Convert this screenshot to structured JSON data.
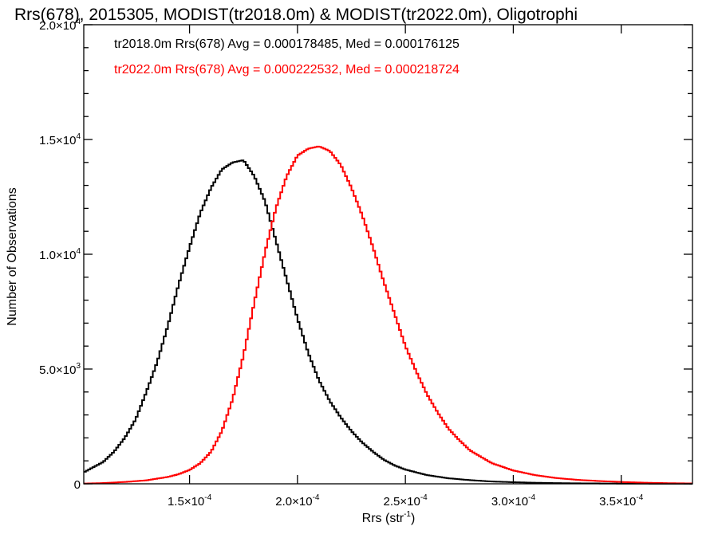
{
  "chart_data": {
    "type": "line",
    "title": "Rrs(678), 2015305, MODIST(tr2018.0m) & MODIST(tr2022.0m), Oligotrophi",
    "xlabel": "Rrs (str",
    "xlabel_sup": "-1",
    "xlabel_close": ")",
    "ylabel": "Number of Observations",
    "xlim": [
      0.000101,
      0.000383
    ],
    "ylim": [
      0,
      20000
    ],
    "x_ticks": [
      {
        "value": 0.00015,
        "mant": "1.5",
        "exp": "-4"
      },
      {
        "value": 0.0002,
        "mant": "2.0",
        "exp": "-4"
      },
      {
        "value": 0.00025,
        "mant": "2.5",
        "exp": "-4"
      },
      {
        "value": 0.0003,
        "mant": "3.0",
        "exp": "-4"
      },
      {
        "value": 0.00035,
        "mant": "3.5",
        "exp": "-4"
      }
    ],
    "y_ticks": [
      {
        "value": 0,
        "mant": "0",
        "exp": ""
      },
      {
        "value": 5000,
        "mant": "5.0",
        "exp": "3"
      },
      {
        "value": 10000,
        "mant": "1.0",
        "exp": "4"
      },
      {
        "value": 15000,
        "mant": "1.5",
        "exp": "4"
      },
      {
        "value": 20000,
        "mant": "2.0",
        "exp": "4"
      }
    ],
    "legend": [
      "tr2018.0m Rrs(678) Avg = 0.000178485, Med = 0.000176125",
      "tr2022.0m Rrs(678) Avg = 0.000222532, Med = 0.000218724"
    ],
    "series": [
      {
        "color": "#000000",
        "x": [
          0.000101,
          0.000105,
          0.00011,
          0.000115,
          0.00012,
          0.000125,
          0.00013,
          0.000135,
          0.00014,
          0.000145,
          0.00015,
          0.000155,
          0.00016,
          0.000165,
          0.00017,
          0.000175,
          0.00018,
          0.000185,
          0.00019,
          0.000195,
          0.0002,
          0.000205,
          0.00021,
          0.000215,
          0.00022,
          0.000225,
          0.00023,
          0.000235,
          0.00024,
          0.000245,
          0.00025,
          0.00026,
          0.00027,
          0.00028,
          0.00029,
          0.0003,
          0.00031,
          0.00032,
          0.00033,
          0.00034,
          0.00035,
          0.00036,
          0.00037,
          0.00038,
          0.000383
        ],
        "y": [
          500,
          700,
          950,
          1400,
          2000,
          2800,
          4000,
          5300,
          6900,
          8700,
          10300,
          11800,
          12900,
          13700,
          14000,
          14100,
          13400,
          12300,
          10600,
          8900,
          7200,
          5700,
          4500,
          3600,
          2900,
          2300,
          1800,
          1400,
          1050,
          800,
          620,
          380,
          240,
          160,
          100,
          70,
          45,
          30,
          20,
          15,
          10,
          7,
          5,
          3,
          2
        ]
      },
      {
        "color": "#ff0000",
        "x": [
          0.000101,
          0.00011,
          0.00012,
          0.00013,
          0.00014,
          0.000145,
          0.00015,
          0.000155,
          0.00016,
          0.000165,
          0.00017,
          0.000175,
          0.00018,
          0.000185,
          0.00019,
          0.000195,
          0.0002,
          0.000205,
          0.00021,
          0.000215,
          0.00022,
          0.000225,
          0.00023,
          0.000235,
          0.00024,
          0.000245,
          0.00025,
          0.000255,
          0.00026,
          0.000265,
          0.00027,
          0.000275,
          0.00028,
          0.00029,
          0.0003,
          0.00031,
          0.00032,
          0.00033,
          0.00034,
          0.00035,
          0.00036,
          0.00037,
          0.000383
        ],
        "y": [
          10,
          30,
          80,
          150,
          300,
          420,
          600,
          900,
          1400,
          2300,
          3700,
          5600,
          7900,
          10100,
          12000,
          13400,
          14300,
          14600,
          14700,
          14500,
          13900,
          12900,
          11700,
          10300,
          8800,
          7400,
          6000,
          4900,
          3900,
          3100,
          2400,
          1900,
          1450,
          900,
          580,
          380,
          250,
          170,
          120,
          80,
          50,
          30,
          15
        ]
      }
    ]
  }
}
